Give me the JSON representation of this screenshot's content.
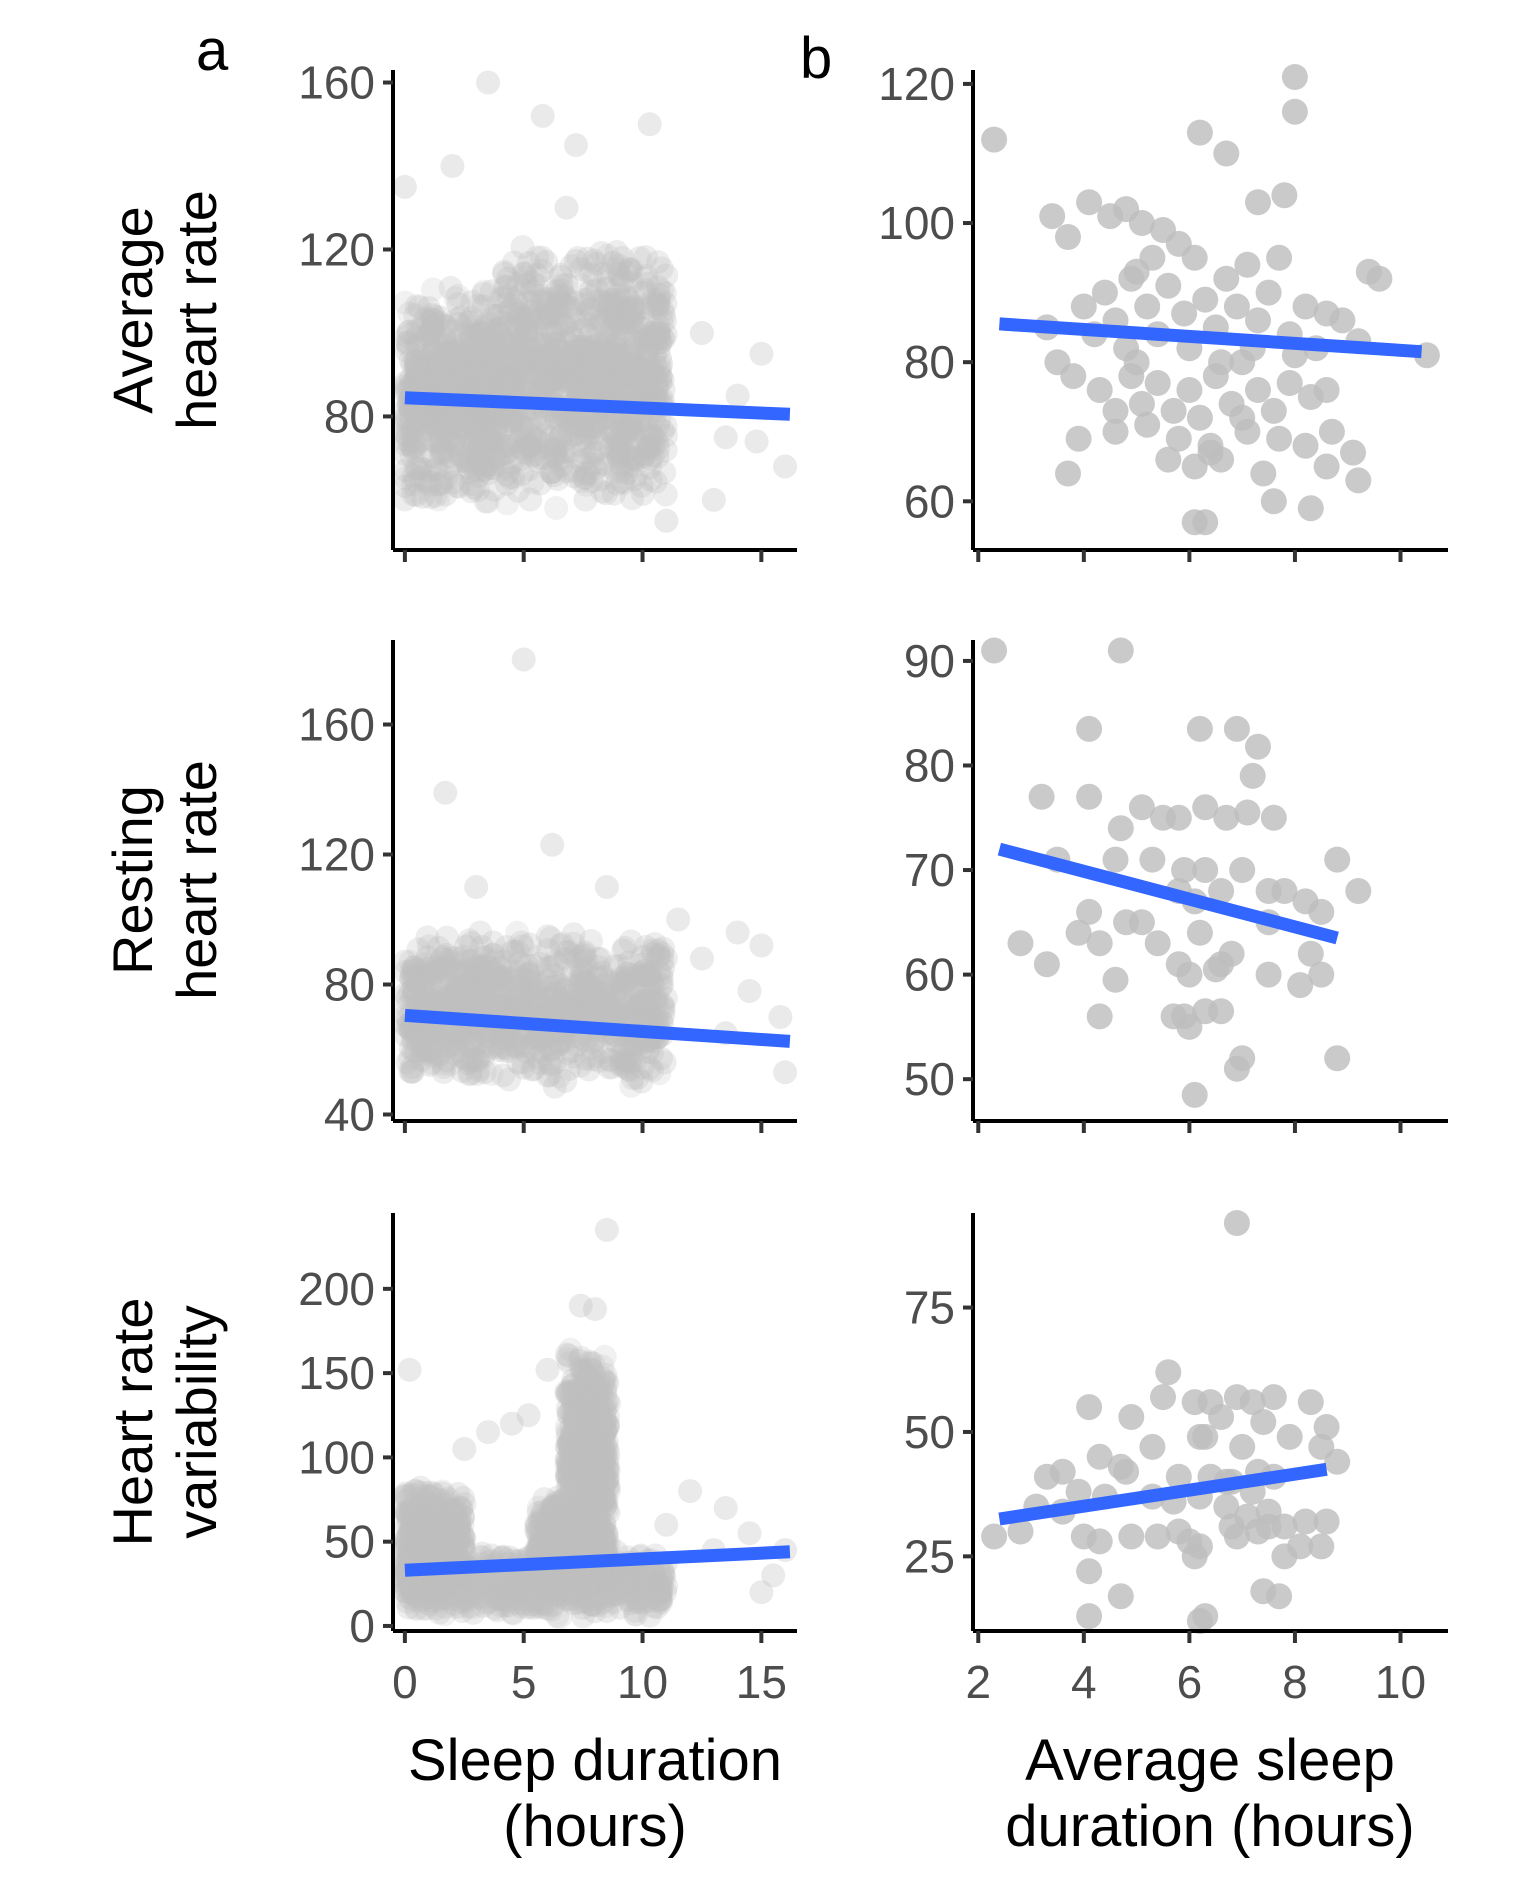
{
  "figure": {
    "panel_labels": [
      "a",
      "b"
    ],
    "row_titles": [
      [
        "Average",
        "heart rate"
      ],
      [
        "Resting",
        "heart rate"
      ],
      [
        "Heart rate",
        "variability"
      ]
    ],
    "x_titles": [
      [
        "Sleep duration",
        "(hours)"
      ],
      [
        "Average sleep",
        "duration (hours)"
      ]
    ],
    "colors": {
      "points": "#bdbdbd",
      "fit_line": "#3366ff"
    }
  },
  "chart_data": [
    {
      "type": "scatter",
      "panel": "a",
      "row": 0,
      "x_range": [
        -0.5,
        16.5
      ],
      "xticks": [
        0,
        5,
        10,
        15
      ],
      "ylim": [
        48,
        163
      ],
      "yticks": [
        80,
        120,
        160
      ],
      "point_style": "dense_translucent",
      "point_cloud": {
        "x_span": [
          0,
          16
        ],
        "y_span": [
          52,
          160
        ],
        "core_regions": [
          {
            "x": [
              0,
              4
            ],
            "y": [
              58,
              112
            ]
          },
          {
            "x": [
              4,
              11
            ],
            "y": [
              58,
              122
            ]
          }
        ],
        "outliers": [
          [
            3.5,
            160
          ],
          [
            5.8,
            152
          ],
          [
            10.3,
            150
          ],
          [
            7.2,
            145
          ],
          [
            2.0,
            140
          ],
          [
            6.8,
            130
          ],
          [
            0.0,
            135
          ],
          [
            12.5,
            100
          ],
          [
            14.0,
            85
          ],
          [
            16.0,
            68
          ],
          [
            13.5,
            75
          ],
          [
            15.0,
            95
          ],
          [
            13.0,
            60
          ],
          [
            11.0,
            55
          ],
          [
            14.8,
            74
          ]
        ]
      },
      "fit": {
        "x": [
          0,
          16.2
        ],
        "y": [
          84.5,
          80.5
        ]
      },
      "xlabel": "",
      "ylabel": ""
    },
    {
      "type": "scatter",
      "panel": "b",
      "row": 0,
      "x_range": [
        1.9,
        10.9
      ],
      "xticks": [
        2,
        4,
        6,
        8,
        10
      ],
      "ylim": [
        53,
        122
      ],
      "yticks": [
        60,
        80,
        100,
        120
      ],
      "point_style": "individual",
      "points": [
        [
          2.3,
          112
        ],
        [
          3.4,
          101
        ],
        [
          3.7,
          98
        ],
        [
          4.1,
          103
        ],
        [
          4.5,
          101
        ],
        [
          4.8,
          102
        ],
        [
          5.1,
          100
        ],
        [
          5.5,
          99
        ],
        [
          5.8,
          97
        ],
        [
          6.2,
          113
        ],
        [
          6.7,
          110
        ],
        [
          7.3,
          103
        ],
        [
          7.8,
          104
        ],
        [
          8.0,
          121
        ],
        [
          8.0,
          116
        ],
        [
          9.4,
          93
        ],
        [
          9.6,
          92
        ],
        [
          10.5,
          81
        ],
        [
          3.3,
          85
        ],
        [
          3.5,
          80
        ],
        [
          3.8,
          78
        ],
        [
          4.0,
          88
        ],
        [
          4.2,
          84
        ],
        [
          4.4,
          90
        ],
        [
          4.6,
          86
        ],
        [
          4.8,
          82
        ],
        [
          5.0,
          93
        ],
        [
          5.2,
          88
        ],
        [
          5.4,
          84
        ],
        [
          5.6,
          91
        ],
        [
          5.9,
          87
        ],
        [
          6.1,
          95
        ],
        [
          6.3,
          89
        ],
        [
          6.5,
          85
        ],
        [
          6.7,
          92
        ],
        [
          6.9,
          88
        ],
        [
          7.1,
          94
        ],
        [
          7.3,
          86
        ],
        [
          7.5,
          90
        ],
        [
          7.7,
          95
        ],
        [
          7.9,
          84
        ],
        [
          8.2,
          88
        ],
        [
          8.4,
          82
        ],
        [
          8.6,
          87
        ],
        [
          8.9,
          86
        ],
        [
          9.2,
          83
        ],
        [
          4.3,
          76
        ],
        [
          4.6,
          73
        ],
        [
          4.9,
          78
        ],
        [
          5.1,
          74
        ],
        [
          5.4,
          77
        ],
        [
          5.7,
          73
        ],
        [
          6.0,
          76
        ],
        [
          6.2,
          72
        ],
        [
          6.5,
          78
        ],
        [
          6.8,
          74
        ],
        [
          7.0,
          72
        ],
        [
          7.3,
          76
        ],
        [
          7.6,
          73
        ],
        [
          7.9,
          77
        ],
        [
          8.3,
          75
        ],
        [
          8.6,
          76
        ],
        [
          3.9,
          69
        ],
        [
          4.6,
          70
        ],
        [
          5.2,
          71
        ],
        [
          5.8,
          69
        ],
        [
          6.4,
          68
        ],
        [
          7.1,
          70
        ],
        [
          7.7,
          69
        ],
        [
          8.2,
          68
        ],
        [
          8.7,
          70
        ],
        [
          5.6,
          66
        ],
        [
          6.1,
          65
        ],
        [
          6.4,
          67
        ],
        [
          6.6,
          66
        ],
        [
          7.4,
          64
        ],
        [
          8.6,
          65
        ],
        [
          3.7,
          64
        ],
        [
          7.6,
          60
        ],
        [
          8.3,
          59
        ],
        [
          6.1,
          57
        ],
        [
          6.3,
          57
        ],
        [
          9.2,
          63
        ],
        [
          9.1,
          67
        ],
        [
          4.9,
          92
        ],
        [
          5.3,
          95
        ],
        [
          6.6,
          80
        ],
        [
          7.2,
          82
        ],
        [
          5.0,
          80
        ],
        [
          6.0,
          82
        ],
        [
          7.0,
          80
        ],
        [
          8.0,
          81
        ]
      ],
      "fit": {
        "x": [
          2.4,
          10.4
        ],
        "y": [
          85.5,
          81.5
        ]
      },
      "xlabel": "",
      "ylabel": ""
    },
    {
      "type": "scatter",
      "panel": "a",
      "row": 1,
      "x_range": [
        -0.5,
        16.5
      ],
      "xticks": [
        0,
        5,
        10,
        15
      ],
      "ylim": [
        38,
        186
      ],
      "yticks": [
        40,
        80,
        120,
        160
      ],
      "point_style": "dense_translucent",
      "point_cloud": {
        "x_span": [
          0,
          16
        ],
        "y_span": [
          45,
          180
        ],
        "core_regions": [
          {
            "x": [
              0,
              11
            ],
            "y": [
              48,
              97
            ]
          }
        ],
        "outliers": [
          [
            5.0,
            180
          ],
          [
            1.7,
            139
          ],
          [
            6.2,
            123
          ],
          [
            3.0,
            110
          ],
          [
            8.5,
            110
          ],
          [
            14.0,
            96
          ],
          [
            12.5,
            88
          ],
          [
            15.0,
            92
          ],
          [
            16.0,
            53
          ],
          [
            13.5,
            65
          ],
          [
            14.5,
            78
          ],
          [
            11.5,
            100
          ],
          [
            15.8,
            70
          ]
        ]
      },
      "fit": {
        "x": [
          0,
          16.2
        ],
        "y": [
          70.5,
          62.5
        ]
      },
      "xlabel": "",
      "ylabel": ""
    },
    {
      "type": "scatter",
      "panel": "b",
      "row": 1,
      "x_range": [
        1.9,
        10.9
      ],
      "xticks": [
        2,
        4,
        6,
        8,
        10
      ],
      "ylim": [
        46,
        92
      ],
      "yticks": [
        50,
        60,
        70,
        80,
        90
      ],
      "point_style": "individual",
      "points": [
        [
          2.3,
          91
        ],
        [
          4.7,
          91
        ],
        [
          4.1,
          83.5
        ],
        [
          6.2,
          83.5
        ],
        [
          6.9,
          83.5
        ],
        [
          7.3,
          81.8
        ],
        [
          7.2,
          79
        ],
        [
          3.2,
          77
        ],
        [
          4.1,
          77
        ],
        [
          4.7,
          74
        ],
        [
          5.1,
          76
        ],
        [
          5.5,
          75
        ],
        [
          5.8,
          75
        ],
        [
          6.3,
          76
        ],
        [
          6.7,
          75
        ],
        [
          7.1,
          75.5
        ],
        [
          7.6,
          75
        ],
        [
          3.5,
          71
        ],
        [
          4.6,
          71
        ],
        [
          5.3,
          71
        ],
        [
          5.9,
          70
        ],
        [
          6.3,
          70
        ],
        [
          7.0,
          70
        ],
        [
          7.5,
          68
        ],
        [
          7.8,
          68
        ],
        [
          8.2,
          67
        ],
        [
          8.5,
          66
        ],
        [
          8.8,
          71
        ],
        [
          9.2,
          68
        ],
        [
          5.8,
          68
        ],
        [
          6.1,
          67
        ],
        [
          6.6,
          68
        ],
        [
          4.8,
          65
        ],
        [
          5.4,
          63
        ],
        [
          6.2,
          64
        ],
        [
          6.8,
          62
        ],
        [
          7.5,
          65
        ],
        [
          8.3,
          62
        ],
        [
          4.1,
          66
        ],
        [
          3.9,
          64
        ],
        [
          4.3,
          63
        ],
        [
          5.1,
          65
        ],
        [
          2.8,
          63
        ],
        [
          3.3,
          61
        ],
        [
          5.8,
          61
        ],
        [
          6.0,
          60
        ],
        [
          6.6,
          61
        ],
        [
          6.5,
          60.5
        ],
        [
          7.5,
          60
        ],
        [
          8.5,
          60
        ],
        [
          4.6,
          59.5
        ],
        [
          8.1,
          59
        ],
        [
          6.3,
          56.5
        ],
        [
          4.3,
          56
        ],
        [
          5.7,
          56
        ],
        [
          5.9,
          56
        ],
        [
          6.0,
          55
        ],
        [
          6.6,
          56.5
        ],
        [
          7.0,
          52
        ],
        [
          8.8,
          52
        ],
        [
          6.9,
          51
        ],
        [
          6.1,
          48.5
        ]
      ],
      "fit": {
        "x": [
          2.4,
          8.8
        ],
        "y": [
          72.0,
          63.5
        ]
      },
      "xlabel": "",
      "ylabel": ""
    },
    {
      "type": "scatter",
      "panel": "a",
      "row": 2,
      "x_range": [
        -0.5,
        16.5
      ],
      "xticks": [
        0,
        5,
        10,
        15
      ],
      "ylim": [
        -3,
        245
      ],
      "yticks": [
        0,
        50,
        100,
        150,
        200
      ],
      "point_style": "dense_translucent",
      "point_cloud": {
        "x_span": [
          0,
          16
        ],
        "y_span": [
          5,
          235
        ],
        "core_regions": [
          {
            "x": [
              0,
              11
            ],
            "y": [
              5,
              45
            ]
          },
          {
            "x": [
              0,
              2.5
            ],
            "y": [
              10,
              85
            ]
          },
          {
            "x": [
              5.5,
              8.5
            ],
            "y": [
              15,
              80
            ]
          },
          {
            "x": [
              6.8,
              8.6
            ],
            "y": [
              40,
              170
            ]
          }
        ],
        "outliers": [
          [
            8.5,
            235
          ],
          [
            0.2,
            152
          ],
          [
            8.0,
            188
          ],
          [
            7.4,
            190
          ],
          [
            6.0,
            152
          ],
          [
            3.5,
            115
          ],
          [
            4.5,
            120
          ],
          [
            5.2,
            125
          ],
          [
            2.5,
            105
          ],
          [
            12.0,
            80
          ],
          [
            13.5,
            70
          ],
          [
            14.5,
            55
          ],
          [
            15.5,
            30
          ],
          [
            15.0,
            20
          ],
          [
            13.0,
            45
          ],
          [
            16.0,
            45
          ],
          [
            11.0,
            60
          ]
        ]
      },
      "fit": {
        "x": [
          0,
          16.2
        ],
        "y": [
          33,
          44
        ]
      },
      "xlabel": "",
      "ylabel": ""
    },
    {
      "type": "scatter",
      "panel": "b",
      "row": 2,
      "x_range": [
        1.9,
        10.9
      ],
      "xticks": [
        2,
        4,
        6,
        8,
        10
      ],
      "ylim": [
        10,
        94
      ],
      "yticks": [
        25,
        50,
        75
      ],
      "point_style": "individual",
      "points": [
        [
          6.9,
          92
        ],
        [
          5.6,
          62
        ],
        [
          5.5,
          57
        ],
        [
          6.1,
          56
        ],
        [
          6.4,
          56
        ],
        [
          6.9,
          57
        ],
        [
          7.2,
          56
        ],
        [
          7.6,
          57
        ],
        [
          8.3,
          56
        ],
        [
          4.1,
          55
        ],
        [
          4.9,
          53
        ],
        [
          6.6,
          53
        ],
        [
          7.4,
          52
        ],
        [
          8.6,
          51
        ],
        [
          8.5,
          47
        ],
        [
          7.0,
          47
        ],
        [
          7.9,
          49
        ],
        [
          6.2,
          49
        ],
        [
          6.3,
          49
        ],
        [
          5.3,
          47
        ],
        [
          4.3,
          45
        ],
        [
          4.7,
          43
        ],
        [
          4.8,
          42
        ],
        [
          3.6,
          42
        ],
        [
          3.3,
          41
        ],
        [
          5.8,
          41
        ],
        [
          6.4,
          41
        ],
        [
          6.7,
          40
        ],
        [
          6.8,
          40
        ],
        [
          7.2,
          38
        ],
        [
          7.6,
          41
        ],
        [
          7.3,
          42
        ],
        [
          8.8,
          44
        ],
        [
          3.9,
          38
        ],
        [
          4.4,
          37
        ],
        [
          5.3,
          37
        ],
        [
          5.7,
          36
        ],
        [
          6.2,
          37
        ],
        [
          6.7,
          35
        ],
        [
          7.1,
          33
        ],
        [
          7.5,
          34
        ],
        [
          8.2,
          32
        ],
        [
          8.6,
          32
        ],
        [
          2.3,
          29
        ],
        [
          2.8,
          30
        ],
        [
          4.0,
          29
        ],
        [
          4.3,
          28
        ],
        [
          4.9,
          29
        ],
        [
          5.4,
          29
        ],
        [
          5.8,
          30
        ],
        [
          6.0,
          28
        ],
        [
          6.2,
          27
        ],
        [
          6.9,
          29
        ],
        [
          7.3,
          30
        ],
        [
          7.5,
          31
        ],
        [
          7.8,
          31
        ],
        [
          8.5,
          27
        ],
        [
          3.1,
          35
        ],
        [
          3.6,
          34
        ],
        [
          6.1,
          25
        ],
        [
          7.8,
          25
        ],
        [
          8.1,
          27
        ],
        [
          4.1,
          22
        ],
        [
          4.7,
          17
        ],
        [
          4.1,
          13
        ],
        [
          6.2,
          12
        ],
        [
          7.4,
          18
        ],
        [
          7.7,
          17
        ],
        [
          6.3,
          13
        ],
        [
          6.8,
          31
        ]
      ],
      "fit": {
        "x": [
          2.4,
          8.6
        ],
        "y": [
          32.5,
          42.5
        ]
      },
      "xlabel": "",
      "ylabel": ""
    }
  ]
}
